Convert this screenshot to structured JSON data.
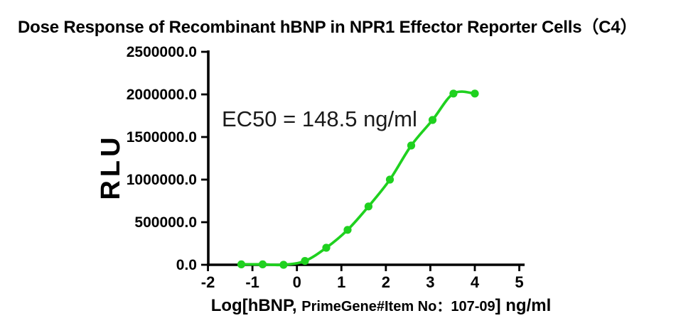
{
  "colors": {
    "background": "#ffffff",
    "axis": "#000000",
    "text": "#000000",
    "annotation_text": "#1a1a1a",
    "series_green": "#1fd11f"
  },
  "chart_data": {
    "type": "scatter",
    "title": "Dose Response of Recombinant hBNP in NPR1 Effector Reporter Cells（C4）",
    "ylabel": "RLU",
    "xlabel_segments": [
      {
        "text": "Log[hBNP, ",
        "size": "large"
      },
      {
        "text": "PrimeGene#Item No：107-09",
        "size": "small"
      },
      {
        "text": "] ng/ml",
        "size": "large"
      }
    ],
    "annotation": "EC50 = 148.5 ng/ml",
    "ec50_ng_ml": 148.5,
    "xlim": [
      -2,
      5
    ],
    "ylim": [
      0,
      2500000
    ],
    "grid": false,
    "legend": "none",
    "x_ticks": [
      -2,
      -1,
      0,
      1,
      2,
      3,
      4,
      5
    ],
    "y_ticks": [
      {
        "value": 0,
        "label": "0.0"
      },
      {
        "value": 500000,
        "label": "500000.0"
      },
      {
        "value": 1000000,
        "label": "1000000.0"
      },
      {
        "value": 1500000,
        "label": "1500000.0"
      },
      {
        "value": 2000000,
        "label": "2000000.0"
      },
      {
        "value": 2500000,
        "label": "2500000.0"
      }
    ],
    "series": [
      {
        "name": "Recombinant hBNP",
        "marker": "circle",
        "color": "#1fd11f",
        "x": [
          -1.25,
          -0.77,
          -0.3,
          0.18,
          0.66,
          1.14,
          1.61,
          2.09,
          2.57,
          3.05,
          3.52,
          4.0
        ],
        "y": [
          5000,
          5000,
          0,
          45000,
          200000,
          410000,
          685000,
          1000000,
          1400000,
          1700000,
          2010000,
          2010000
        ]
      }
    ]
  }
}
